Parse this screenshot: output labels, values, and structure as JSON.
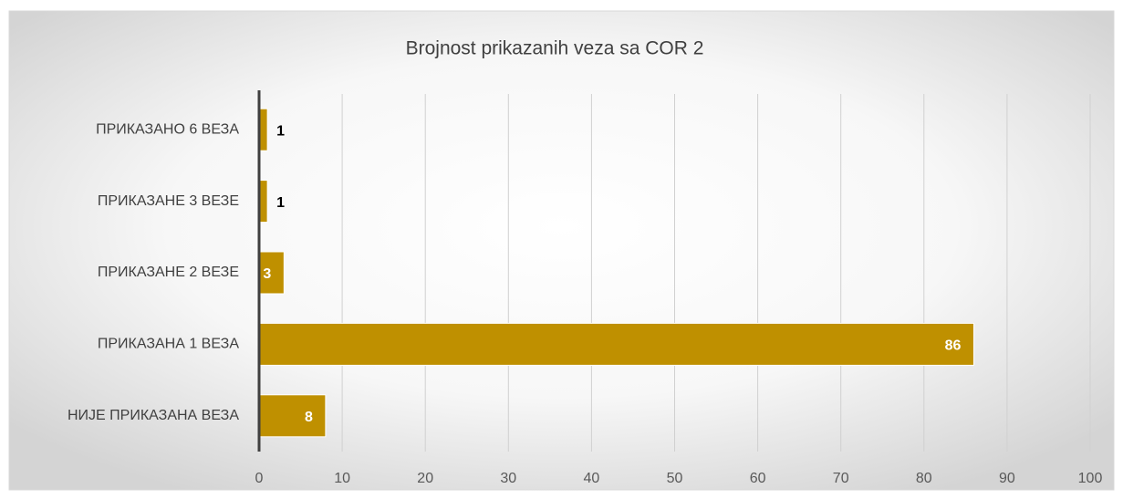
{
  "chart_data": {
    "type": "bar",
    "orientation": "horizontal",
    "title": "Brojnost prikazanih veza sa COR 2",
    "categories": [
      "ПРИКАЗАНО 6 ВЕЗА",
      "ПРИКАЗАНЕ 3 ВЕЗЕ",
      "ПРИКАЗАНЕ 2 ВЕЗЕ",
      "ПРИКАЗАНА 1 ВЕЗА",
      "НИЈЕ ПРИКАЗАНА ВЕЗА"
    ],
    "values": [
      1,
      1,
      3,
      86,
      8
    ],
    "color": "#bf9000",
    "xlim": [
      0,
      100
    ],
    "xticks": [
      0,
      10,
      20,
      30,
      40,
      50,
      60,
      70,
      80,
      90,
      100
    ],
    "grid": true
  }
}
